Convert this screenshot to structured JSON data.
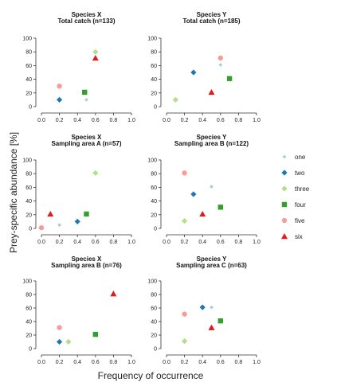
{
  "chart_data": {
    "type": "scatter",
    "xlabel": "Frequency of occurrence",
    "ylabel": "Prey-specific abundance [%]",
    "xlim": [
      0,
      1
    ],
    "ylim": [
      0,
      100
    ],
    "x_ticks": [
      "0.0",
      "0.2",
      "0.4",
      "0.6",
      "0.8",
      "1.0"
    ],
    "y_ticks": [
      "0",
      "20",
      "40",
      "60",
      "80",
      "100"
    ],
    "legend": {
      "placement": "right",
      "entries": [
        {
          "name": "one",
          "marker": "diamond-small",
          "color": "#a6cee3"
        },
        {
          "name": "two",
          "marker": "diamond",
          "color": "#1f78b4"
        },
        {
          "name": "three",
          "marker": "diamond",
          "color": "#b2df8a"
        },
        {
          "name": "four",
          "marker": "square",
          "color": "#33a02c"
        },
        {
          "name": "five",
          "marker": "circle",
          "color": "#fb9a99"
        },
        {
          "name": "six",
          "marker": "triangle",
          "color": "#e31a1c"
        }
      ]
    },
    "panels": [
      {
        "title": [
          "Species X",
          "Total catch (n=133)"
        ],
        "points": [
          {
            "series": "one",
            "x": 0.5,
            "y": 10
          },
          {
            "series": "two",
            "x": 0.2,
            "y": 10
          },
          {
            "series": "three",
            "x": 0.6,
            "y": 80
          },
          {
            "series": "four",
            "x": 0.48,
            "y": 21
          },
          {
            "series": "five",
            "x": 0.2,
            "y": 30
          },
          {
            "series": "six",
            "x": 0.6,
            "y": 71
          }
        ]
      },
      {
        "title": [
          "Species Y",
          "Total catch (n=185)"
        ],
        "points": [
          {
            "series": "one",
            "x": 0.6,
            "y": 61
          },
          {
            "series": "two",
            "x": 0.3,
            "y": 50
          },
          {
            "series": "three",
            "x": 0.1,
            "y": 10
          },
          {
            "series": "four",
            "x": 0.7,
            "y": 41
          },
          {
            "series": "five",
            "x": 0.6,
            "y": 71
          },
          {
            "series": "six",
            "x": 0.5,
            "y": 21
          }
        ]
      },
      {
        "title": [
          "Species X",
          "Sampling area A (n=57)"
        ],
        "points": [
          {
            "series": "one",
            "x": 0.2,
            "y": 5
          },
          {
            "series": "two",
            "x": 0.4,
            "y": 10
          },
          {
            "series": "three",
            "x": 0.6,
            "y": 81
          },
          {
            "series": "four",
            "x": 0.5,
            "y": 21
          },
          {
            "series": "five",
            "x": 0.0,
            "y": 1
          },
          {
            "series": "six",
            "x": 0.1,
            "y": 21
          }
        ]
      },
      {
        "title": [
          "Species Y",
          "Sampling area B (n=122)"
        ],
        "points": [
          {
            "series": "one",
            "x": 0.5,
            "y": 61
          },
          {
            "series": "two",
            "x": 0.3,
            "y": 50
          },
          {
            "series": "three",
            "x": 0.2,
            "y": 11
          },
          {
            "series": "four",
            "x": 0.6,
            "y": 31
          },
          {
            "series": "five",
            "x": 0.2,
            "y": 81
          },
          {
            "series": "six",
            "x": 0.4,
            "y": 21
          }
        ]
      },
      {
        "title": [
          "Species X",
          "Sampling area B (n=76)"
        ],
        "points": [
          {
            "series": "one",
            "x": 0.2,
            "y": 10
          },
          {
            "series": "two",
            "x": 0.2,
            "y": 10
          },
          {
            "series": "three",
            "x": 0.3,
            "y": 10
          },
          {
            "series": "four",
            "x": 0.6,
            "y": 21
          },
          {
            "series": "five",
            "x": 0.2,
            "y": 31
          },
          {
            "series": "six",
            "x": 0.8,
            "y": 81
          }
        ]
      },
      {
        "title": [
          "Species Y",
          "Sampling area C (n=63)"
        ],
        "points": [
          {
            "series": "one",
            "x": 0.5,
            "y": 61
          },
          {
            "series": "two",
            "x": 0.4,
            "y": 61
          },
          {
            "series": "three",
            "x": 0.2,
            "y": 11
          },
          {
            "series": "four",
            "x": 0.6,
            "y": 41
          },
          {
            "series": "five",
            "x": 0.2,
            "y": 51
          },
          {
            "series": "six",
            "x": 0.5,
            "y": 31
          }
        ]
      }
    ]
  }
}
